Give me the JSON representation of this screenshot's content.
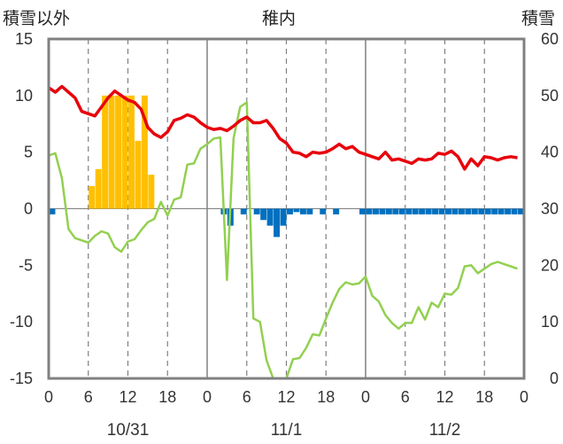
{
  "header": {
    "left_label": "積雪以外",
    "center_label": "稚内",
    "right_label": "積雪"
  },
  "colors": {
    "temperature": "#e8000b",
    "dewpoint": "#92d050",
    "snowfall": "#ffc000",
    "snow_decrease": "#0070c0",
    "snow_depth": "#7030a0",
    "frame": "#808080",
    "grid": "#808080"
  },
  "chart_data": {
    "type": "line",
    "left_axis": {
      "ylim": [
        -15,
        15
      ],
      "ticks": [
        "15",
        "10",
        "5",
        "0",
        "-5",
        "-10",
        "-15"
      ]
    },
    "right_axis": {
      "ylim": [
        0,
        60
      ],
      "ticks": [
        "60",
        "50",
        "40",
        "30",
        "20",
        "10",
        "0"
      ]
    },
    "x_range_hours": [
      0,
      72
    ],
    "x_ticks": [
      "0",
      "6",
      "12",
      "18",
      "0",
      "6",
      "12",
      "18",
      "0",
      "6",
      "12",
      "18",
      "0"
    ],
    "dates": [
      {
        "label": "10/31",
        "at_hour": 12
      },
      {
        "label": "11/1",
        "at_hour": 36
      },
      {
        "label": "11/2",
        "at_hour": 60
      }
    ],
    "grid": "dashed vertical at 6,12,18 h; solid at day boundaries",
    "series": [
      {
        "axis": "left",
        "style": "line",
        "x": [
          0,
          1,
          2,
          3,
          4,
          5,
          6,
          7,
          8,
          9,
          10,
          11,
          12,
          13,
          14,
          15,
          16,
          17,
          18,
          19,
          20,
          21,
          22,
          23,
          24,
          25,
          26,
          27,
          28,
          29,
          30,
          31,
          32,
          33,
          34,
          35,
          36,
          37,
          38,
          39,
          40,
          41,
          42,
          43,
          44,
          45,
          46,
          47,
          48,
          49,
          50,
          51,
          52,
          53,
          54,
          55,
          56,
          57,
          58,
          59,
          60,
          61,
          62,
          63,
          64,
          65,
          66,
          67,
          68,
          69,
          70,
          71
        ],
        "y": [
          10.7,
          10.3,
          10.8,
          10.3,
          9.8,
          8.6,
          8.4,
          8.2,
          9,
          9.8,
          10.4,
          10,
          9.6,
          9.4,
          8.8,
          7.2,
          6.6,
          6.3,
          6.8,
          7.8,
          8,
          8.3,
          8.1,
          7.6,
          7.2,
          7,
          7.1,
          6.9,
          7.3,
          7.8,
          8.1,
          7.6,
          7.6,
          7.8,
          7.1,
          6.2,
          5.8,
          5,
          4.9,
          4.6,
          5,
          4.9,
          5,
          5.3,
          5.7,
          5.3,
          5.5,
          5,
          4.8,
          4.6,
          4.4,
          5,
          4.3,
          4.4,
          4.2,
          4,
          4.4,
          4.3,
          4.4,
          4.9,
          4.8,
          5.1,
          4.6,
          3.5,
          4.4,
          3.8,
          4.6,
          4.5,
          4.3,
          4.5,
          4.6,
          4.5
        ]
      },
      {
        "axis": "left",
        "style": "line",
        "x": [
          0,
          1,
          2,
          3,
          4,
          5,
          6,
          7,
          8,
          9,
          10,
          11,
          12,
          13,
          14,
          15,
          16,
          17,
          18,
          19,
          20,
          21,
          22,
          23,
          24,
          25,
          26,
          27,
          28,
          29,
          30,
          31,
          32,
          33,
          34,
          35,
          36,
          37,
          38,
          39,
          40,
          41,
          42,
          43,
          44,
          45,
          46,
          47,
          48,
          49,
          50,
          51,
          52,
          53,
          54,
          55,
          56,
          57,
          58,
          59,
          60,
          61,
          62,
          63,
          64,
          65,
          66,
          67,
          68,
          69,
          70,
          71
        ],
        "y": [
          4.7,
          4.9,
          2.7,
          -1.8,
          -2.6,
          -2.8,
          -3,
          -2.4,
          -2,
          -2.2,
          -3.4,
          -3.8,
          -2.9,
          -2.7,
          -1.9,
          -1.2,
          -0.9,
          0.6,
          -0.6,
          0.8,
          1,
          3.9,
          4,
          5.3,
          5.7,
          6.2,
          6.3,
          -6.3,
          6.2,
          9,
          9.4,
          -9.7,
          -10,
          -13.4,
          -15,
          null,
          -15,
          -13.3,
          -13.2,
          -12.3,
          -11.1,
          -11.2,
          -9.7,
          -8.3,
          -7.1,
          -6.5,
          -6.7,
          -6.6,
          -6,
          -7.7,
          -8.2,
          -9.4,
          -10.1,
          -10.6,
          -10.1,
          -10.1,
          -8.7,
          -9.8,
          -8.3,
          -8.7,
          -7.5,
          -7.6,
          -7,
          -5.1,
          -5,
          -5.7,
          -5.3,
          -4.9,
          -4.7,
          -4.9,
          -5.1,
          -5.3
        ]
      },
      {
        "axis": "left",
        "style": "bar",
        "x": [
          6,
          7,
          8,
          9,
          10,
          11,
          12,
          13,
          14,
          15
        ],
        "y": [
          2,
          3.5,
          10,
          10,
          10,
          10,
          10,
          6,
          10,
          3
        ]
      },
      {
        "axis": "left",
        "style": "bar",
        "x": [
          0,
          26,
          27,
          29,
          31,
          32,
          33,
          34,
          35,
          36,
          37,
          38,
          39,
          41,
          43,
          47,
          48,
          49,
          50,
          51,
          52,
          53,
          54,
          55,
          56,
          57,
          58,
          59,
          60,
          61,
          62,
          63,
          64,
          65,
          66,
          67,
          68,
          69,
          70,
          71
        ],
        "y": [
          -0.5,
          -0.5,
          -1.5,
          -0.5,
          -0.5,
          -1,
          -1.5,
          -2.5,
          -1.5,
          -0.5,
          -0.3,
          -0.5,
          -0.5,
          -0.5,
          -0.5,
          -0.5,
          -0.5,
          -0.5,
          -0.5,
          -0.5,
          -0.5,
          -0.5,
          -0.5,
          -0.5,
          -0.5,
          -0.5,
          -0.5,
          -0.5,
          -0.5,
          -0.5,
          -0.5,
          -0.5,
          -0.5,
          -0.5,
          -0.5,
          -0.5,
          -0.5,
          -0.5,
          -0.5,
          -0.5
        ]
      },
      {
        "axis": "right",
        "style": "line",
        "x": [
          0,
          72
        ],
        "y": [
          0,
          0
        ]
      }
    ]
  }
}
